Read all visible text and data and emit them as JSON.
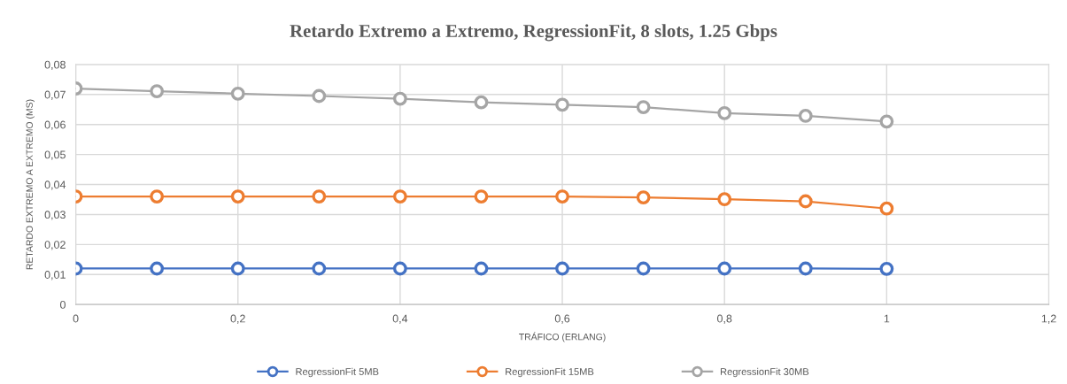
{
  "chart_data": {
    "type": "line",
    "title": "Retardo Extremo a Extremo, RegressionFit, 8 slots, 1.25 Gbps",
    "xlabel": "TRÁFICO (ERLANG)",
    "ylabel": "RETARDO EXTREMO A EXTREMO (MS)",
    "x": [
      0,
      0.1,
      0.2,
      0.3,
      0.4,
      0.5,
      0.6,
      0.7,
      0.8,
      0.9,
      1
    ],
    "series": [
      {
        "name": "RegressionFit 5MB",
        "color": "#4472c4",
        "values": [
          0.012,
          0.012,
          0.012,
          0.012,
          0.012,
          0.012,
          0.012,
          0.012,
          0.012,
          0.012,
          0.0119
        ]
      },
      {
        "name": "RegressionFit 15MB",
        "color": "#ed7d31",
        "values": [
          0.036,
          0.036,
          0.036,
          0.036,
          0.036,
          0.036,
          0.036,
          0.0357,
          0.0351,
          0.0344,
          0.032
        ]
      },
      {
        "name": "RegressionFit 30MB",
        "color": "#a5a5a5",
        "values": [
          0.072,
          0.0711,
          0.0703,
          0.0695,
          0.0686,
          0.0674,
          0.0666,
          0.0658,
          0.0638,
          0.0629,
          0.061
        ]
      }
    ],
    "xlim": [
      0,
      1.2
    ],
    "xticks": [
      0,
      {
        "value": 0.2,
        "label": "0,2"
      },
      {
        "value": 0.4,
        "label": "0,4"
      },
      {
        "value": 0.6,
        "label": "0,6"
      },
      {
        "value": 0.8,
        "label": "0,8"
      },
      1,
      {
        "value": 1.2,
        "label": "1,2"
      }
    ],
    "ylim": [
      0,
      0.08
    ],
    "yticks": [
      0,
      {
        "value": 0.01,
        "label": "0,01"
      },
      {
        "value": 0.02,
        "label": "0,02"
      },
      {
        "value": 0.03,
        "label": "0,03"
      },
      {
        "value": 0.04,
        "label": "0,04"
      },
      {
        "value": 0.05,
        "label": "0,05"
      },
      {
        "value": 0.06,
        "label": "0,06"
      },
      {
        "value": 0.07,
        "label": "0,07"
      },
      {
        "value": 0.08,
        "label": "0,08"
      }
    ],
    "grid": true,
    "legend": "bottom",
    "marker": "circle",
    "line_style": "solid"
  }
}
